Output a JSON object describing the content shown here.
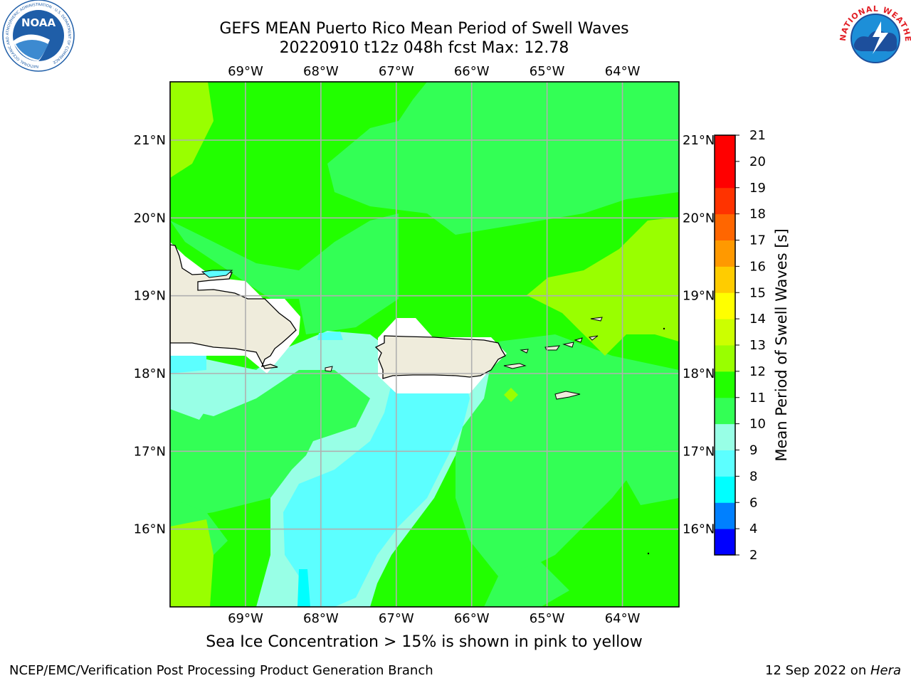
{
  "title_line1": "GEFS MEAN Puerto Rico Mean Period of Swell Waves",
  "title_line2": "20220910 t12z 048h fcst   Max: 12.78",
  "caption": "Sea Ice Concentration > 15% is shown in pink to yellow",
  "footer_left": "NCEP/EMC/Verification Post Processing Product Generation Branch",
  "footer_right_date": "12 Sep 2022 on ",
  "footer_right_machine": "Hera",
  "logos": {
    "noaa_text": "NOAA",
    "noaa_ring_text": "NATIONAL OCEANIC AND ATMOSPHERIC ADMINISTRATION · U.S. DEPARTMENT OF COMMERCE",
    "nws_ring_text": "NATIONAL WEATHER SERVICE"
  },
  "map": {
    "lon_labels": [
      "69°W",
      "68°W",
      "67°W",
      "66°W",
      "65°W",
      "64°W"
    ],
    "lat_labels": [
      "21°N",
      "20°N",
      "19°N",
      "18°N",
      "17°N",
      "16°N"
    ],
    "lon_values": [
      -69,
      -68,
      -67,
      -66,
      -65,
      -64
    ],
    "lat_values": [
      21,
      20,
      19,
      18,
      17,
      16
    ],
    "lon_range": [
      -70.0,
      -63.25
    ],
    "lat_range": [
      15.0,
      21.75
    ]
  },
  "colorbar": {
    "title": "Mean Period of Swell Waves [s]",
    "levels": [
      2,
      4,
      6,
      8,
      9,
      10,
      11,
      12,
      13,
      14,
      15,
      16,
      17,
      18,
      19,
      20,
      21
    ],
    "colors": [
      "#0000ff",
      "#0080ff",
      "#00ffff",
      "#5cffff",
      "#98ffe6",
      "#33ff55",
      "#22ff00",
      "#99ff00",
      "#ccff00",
      "#ffff00",
      "#ffcc00",
      "#ff9900",
      "#ff6600",
      "#ff3300",
      "#ff0000",
      "#ff0000"
    ]
  },
  "colors": {
    "land": "#efecdc",
    "grid": "#b0b0b0",
    "noaa_blue": "#1f5ea8",
    "nws_red": "#e21f26",
    "nws_blue": "#1d4f9c"
  }
}
